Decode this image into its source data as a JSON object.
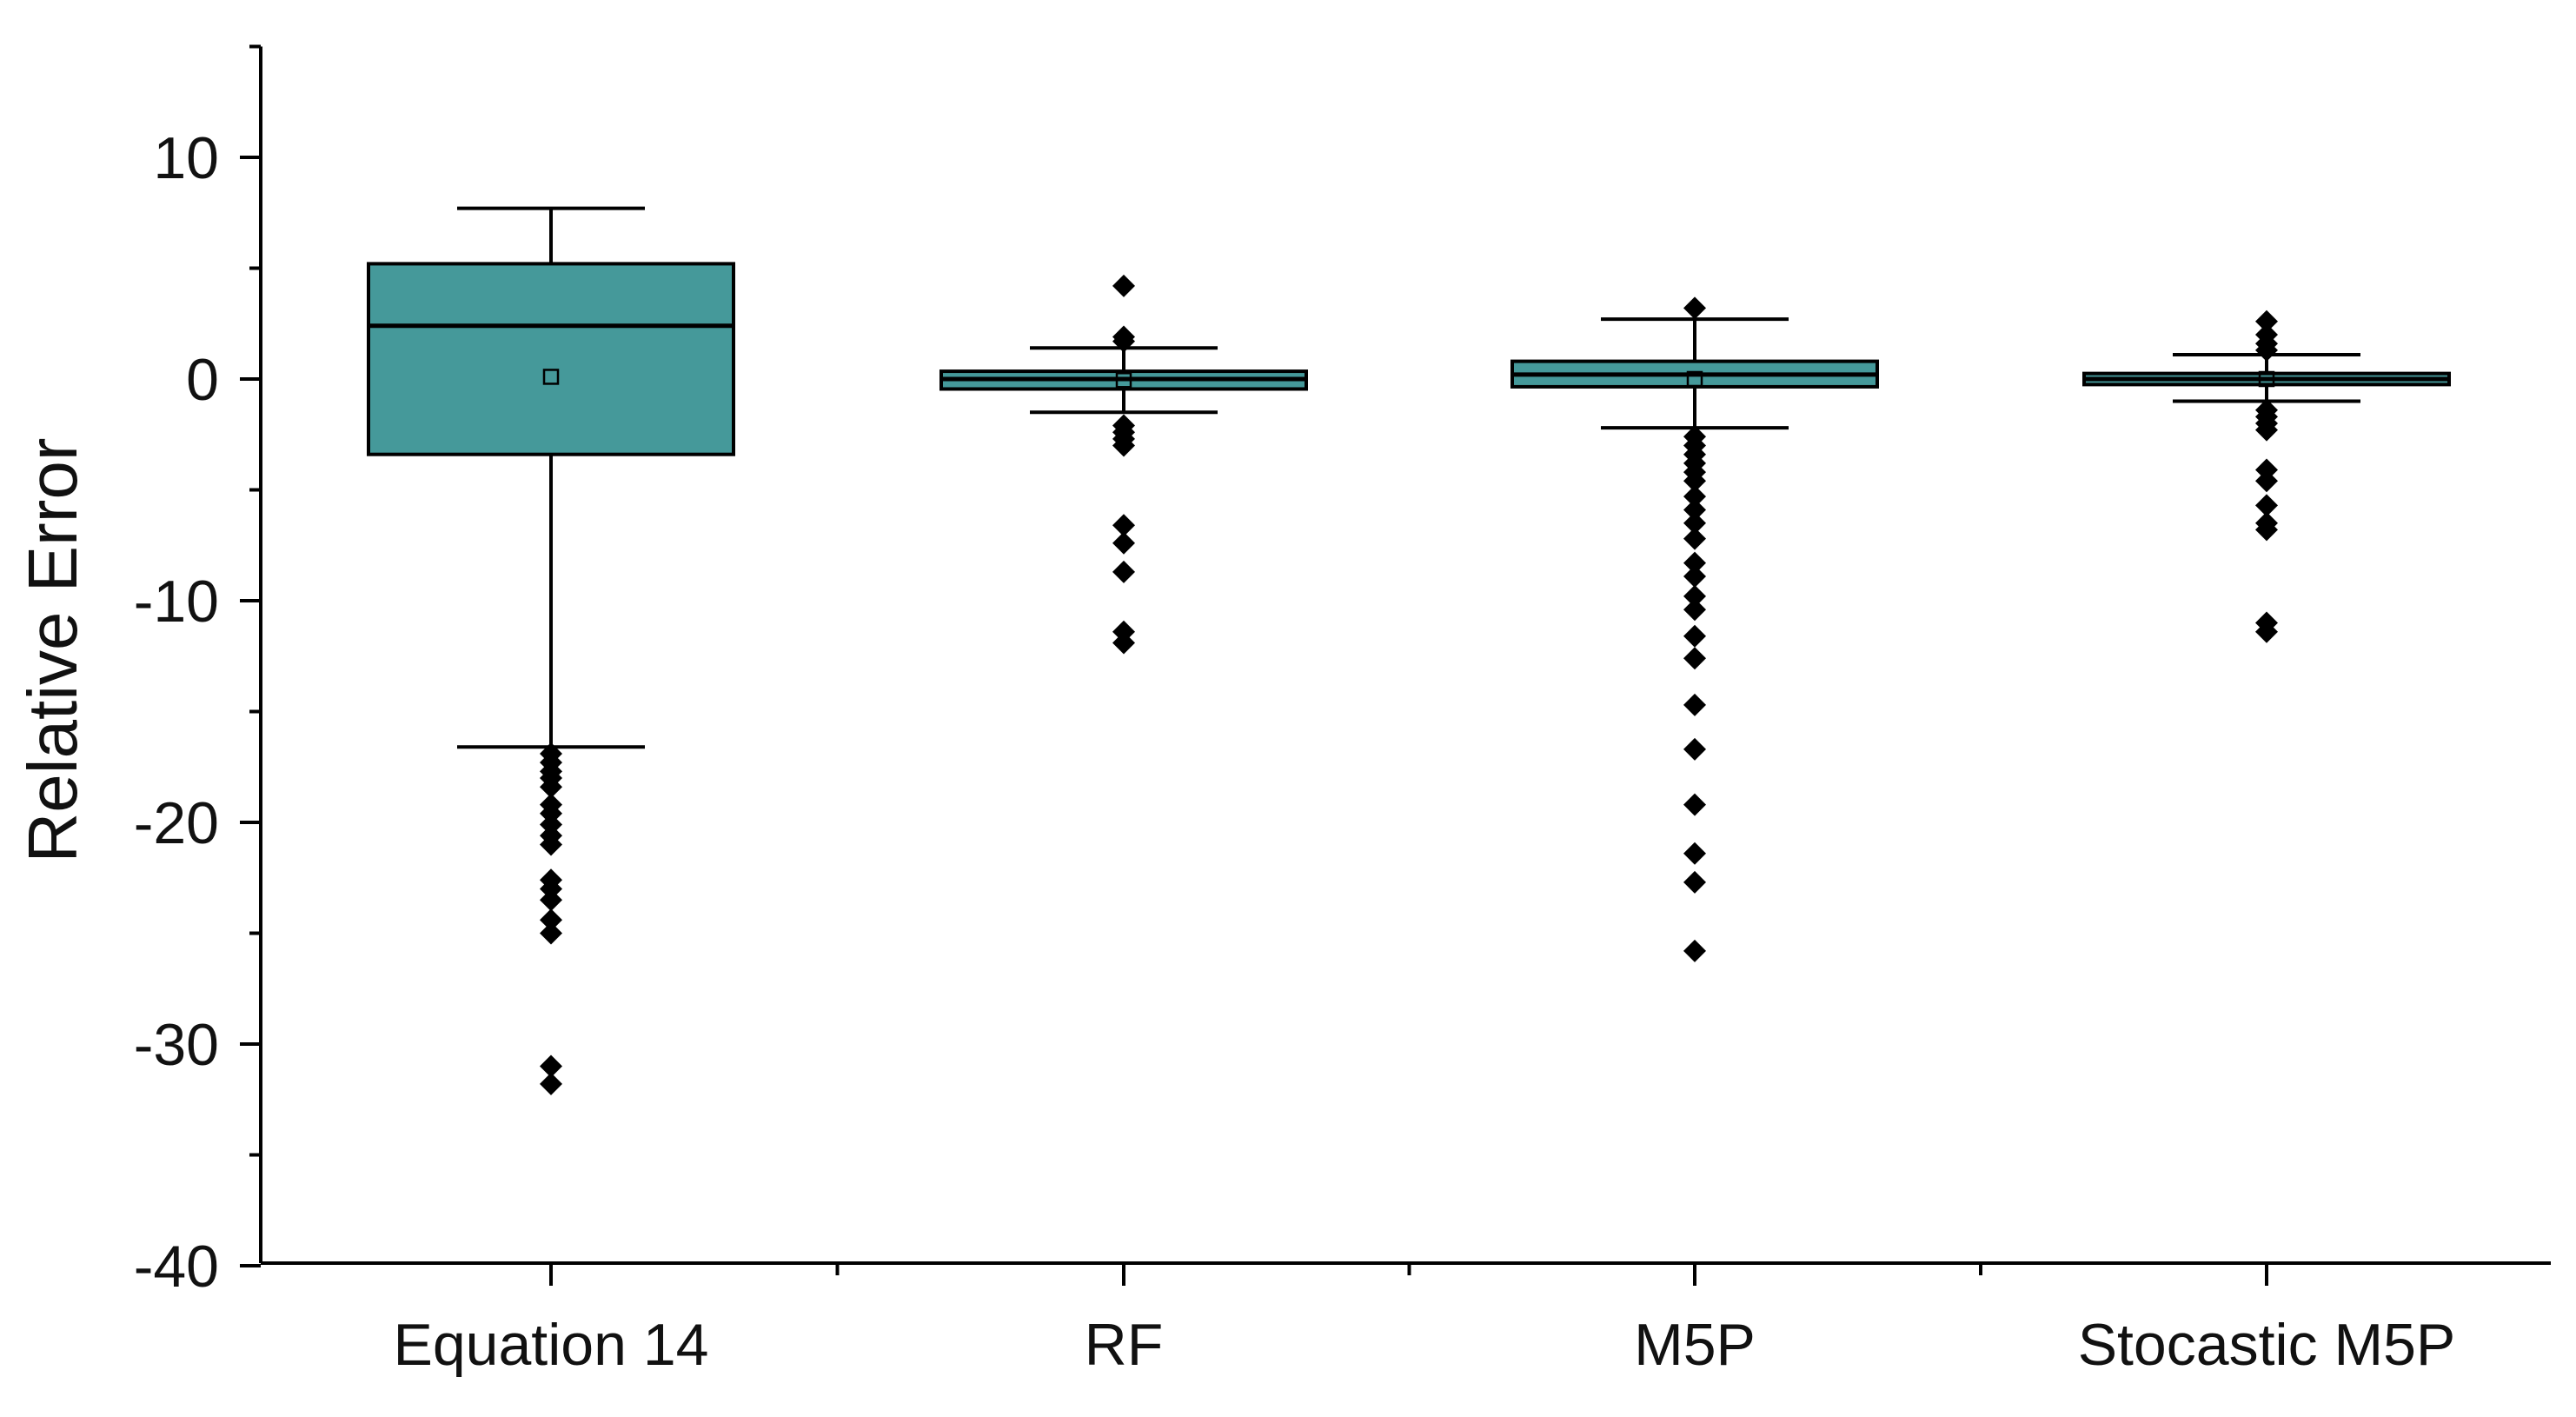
{
  "chart_data": {
    "type": "box",
    "title": "",
    "xlabel": "",
    "ylabel": "Relative Error",
    "ylim": [
      -40,
      15
    ],
    "yticks": [
      10,
      0,
      -10,
      -20,
      -30,
      -40
    ],
    "ytick_labels": [
      "10",
      "0",
      "-10",
      "-20",
      "-30",
      "-40"
    ],
    "box_color": "#45999a",
    "categories": [
      "Equation 14",
      "RF",
      "M5P",
      "Stocastic M5P"
    ],
    "series": [
      {
        "name": "Equation 14",
        "whisker_high": 7.7,
        "q3": 5.2,
        "median": 2.4,
        "mean": 0.1,
        "q1": -3.4,
        "whisker_low": -16.6,
        "outliers": [
          -16.9,
          -17.3,
          -17.7,
          -18.0,
          -18.4,
          -19.2,
          -19.6,
          -20.1,
          -20.6,
          -21.0,
          -22.6,
          -23.0,
          -23.5,
          -24.4,
          -25.0,
          -31.0,
          -31.8
        ]
      },
      {
        "name": "RF",
        "whisker_high": 1.4,
        "q3": 0.35,
        "median": 0.0,
        "mean": -0.05,
        "q1": -0.45,
        "whisker_low": -1.5,
        "outliers": [
          4.2,
          1.9,
          1.7,
          -2.1,
          -2.4,
          -2.7,
          -3.0,
          -6.6,
          -7.4,
          -8.7,
          -11.4,
          -11.9
        ]
      },
      {
        "name": "M5P",
        "whisker_high": 2.7,
        "q3": 0.8,
        "median": 0.2,
        "mean": 0.0,
        "q1": -0.35,
        "whisker_low": -2.2,
        "outliers": [
          3.2,
          -2.6,
          -3.0,
          -3.4,
          -3.8,
          -4.2,
          -4.6,
          -5.3,
          -5.9,
          -6.5,
          -7.2,
          -8.3,
          -8.9,
          -9.8,
          -10.4,
          -11.6,
          -12.6,
          -14.7,
          -16.7,
          -19.2,
          -21.4,
          -22.7,
          -25.8
        ]
      },
      {
        "name": "Stocastic M5P",
        "whisker_high": 1.1,
        "q3": 0.25,
        "median": 0.0,
        "mean": 0.0,
        "q1": -0.25,
        "whisker_low": -1.0,
        "outliers": [
          2.6,
          2.0,
          1.6,
          1.3,
          -1.4,
          -1.7,
          -2.0,
          -2.3,
          -4.1,
          -4.6,
          -5.7,
          -6.5,
          -6.8,
          -11.0,
          -11.4
        ]
      }
    ]
  }
}
